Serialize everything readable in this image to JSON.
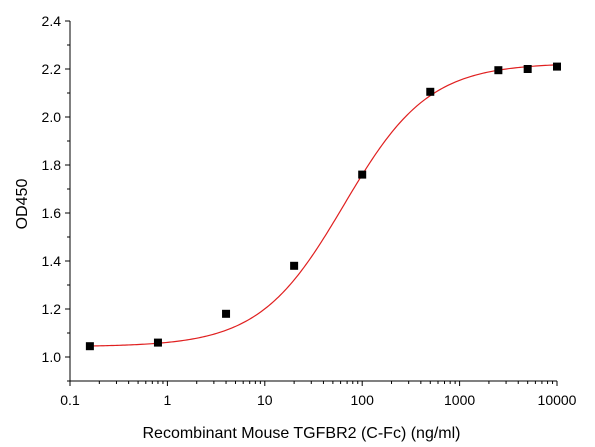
{
  "chart_data": {
    "type": "scatter",
    "title": "",
    "xlabel": "Recombinant Mouse TGFBR2 (C-Fc) (ng/ml)",
    "ylabel": "OD450",
    "xscale": "log",
    "xlim": [
      0.1,
      10000
    ],
    "ylim": [
      0.9,
      2.4
    ],
    "grid": false,
    "legend": "none",
    "x_ticks": [
      "0.1",
      "1",
      "10",
      "100",
      "1000",
      "10000"
    ],
    "y_ticks": [
      "1.0",
      "1.2",
      "1.4",
      "1.6",
      "1.8",
      "2.0",
      "2.2",
      "2.4"
    ],
    "series": [
      {
        "marker": "square",
        "color": "#000000",
        "x": [
          0.16,
          0.8,
          4,
          20,
          100,
          500,
          2500,
          5000,
          10000
        ],
        "y": [
          1.045,
          1.06,
          1.18,
          1.38,
          1.76,
          2.105,
          2.195,
          2.2,
          2.21
        ]
      }
    ],
    "fit": {
      "model": "4PL",
      "color": "#e02020",
      "bottom": 1.043,
      "top": 2.225,
      "ec50": 65,
      "hill": 1.0
    }
  }
}
